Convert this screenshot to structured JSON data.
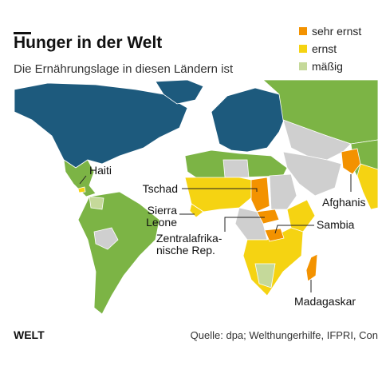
{
  "header": {
    "title": "Hunger in der Welt",
    "subtitle": "Die Ernährungslage in diesen Ländern ist"
  },
  "legend": [
    {
      "label": "sehr ernst",
      "color": "#f39200"
    },
    {
      "label": "ernst",
      "color": "#f5d312"
    },
    {
      "label": "mäßig",
      "color": "#c5d99a"
    }
  ],
  "map": {
    "labels": [
      {
        "lines": [
          "Haiti"
        ]
      },
      {
        "lines": [
          "Tschad"
        ]
      },
      {
        "lines": [
          "Sierra",
          "Leone"
        ]
      },
      {
        "lines": [
          "Zentralafrika-",
          "nische Rep."
        ]
      },
      {
        "lines": [
          "Afghanis"
        ]
      },
      {
        "lines": [
          "Sambia"
        ]
      },
      {
        "lines": [
          "Madagaskar"
        ]
      }
    ]
  },
  "footer": {
    "brand": "WELT",
    "source": "Quelle: dpa; Welthungerhilfe, IFPRI, Con"
  }
}
